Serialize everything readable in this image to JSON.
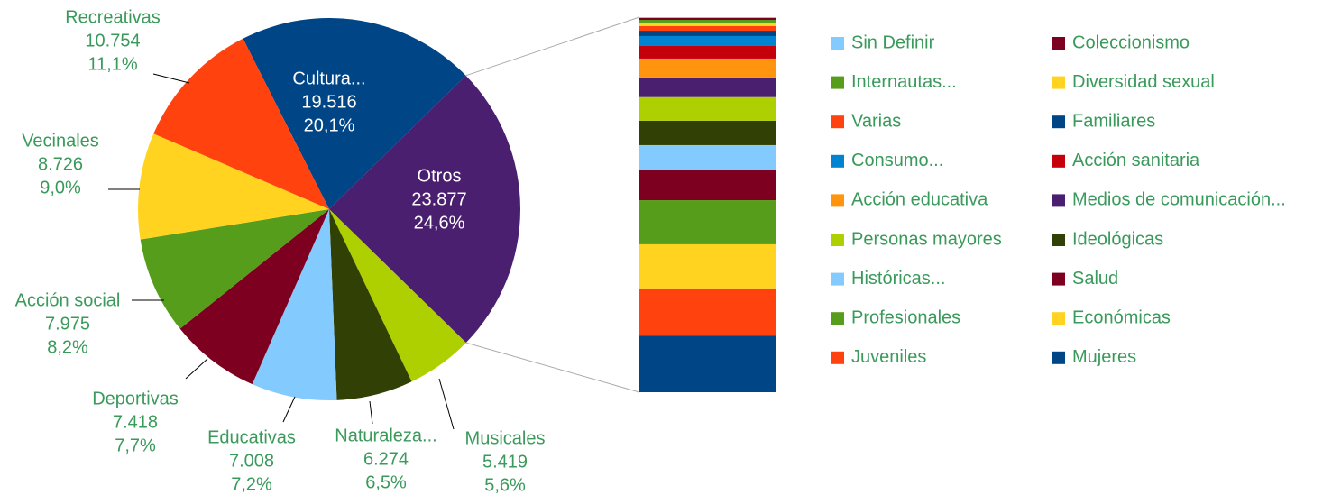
{
  "chart_data": {
    "type": "pie-of-bar",
    "categories": [
      "Cultura...",
      "Otros",
      "Musicales",
      "Naturaleza...",
      "Educativas",
      "Deportivas",
      "Acción social",
      "Vecinales",
      "Recreativas"
    ],
    "values": [
      19516,
      23877,
      5419,
      6274,
      7008,
      7418,
      7975,
      8726,
      10754
    ],
    "value_labels": [
      "19.516",
      "23.877",
      "5.419",
      "6.274",
      "7.008",
      "7.418",
      "7.975",
      "8.726",
      "10.754"
    ],
    "percent_labels": [
      "20,1%",
      "24,6%",
      "5,6%",
      "6,5%",
      "7,2%",
      "7,7%",
      "8,2%",
      "9,0%",
      "11,1%"
    ],
    "colors": [
      "#004586",
      "#4b1f6f",
      "#aecf00",
      "#314004",
      "#83caff",
      "#7e0021",
      "#579d1c",
      "#ffd320",
      "#ff420e"
    ],
    "breakdown": [
      {
        "name": "Sin Definir",
        "color": "#83caff",
        "value": 57
      },
      {
        "name": "Coleccionismo",
        "color": "#7e0021",
        "value": 115
      },
      {
        "name": "Internautas...",
        "color": "#579d1c",
        "value": 170
      },
      {
        "name": "Diversidad sexual",
        "color": "#ffd320",
        "value": 230
      },
      {
        "name": "Varias",
        "color": "#ff420e",
        "value": 290
      },
      {
        "name": "Familiares",
        "color": "#004586",
        "value": 340
      },
      {
        "name": "Consumo...",
        "color": "#0084d1",
        "value": 630
      },
      {
        "name": "Acción sanitaria",
        "color": "#c5000b",
        "value": 800
      },
      {
        "name": "Acción educativa",
        "color": "#ff950e",
        "value": 1200
      },
      {
        "name": "Medios de comunicación...",
        "color": "#4b1f6f",
        "value": 1250
      },
      {
        "name": "Personas mayores",
        "color": "#aecf00",
        "value": 1500
      },
      {
        "name": "Ideológicas",
        "color": "#314004",
        "value": 1550
      },
      {
        "name": "Históricas...",
        "color": "#83caff",
        "value": 1550
      },
      {
        "name": "Salud",
        "color": "#7e0021",
        "value": 1950
      },
      {
        "name": "Profesionales",
        "color": "#579d1c",
        "value": 2800
      },
      {
        "name": "Económicas",
        "color": "#ffd320",
        "value": 2800
      },
      {
        "name": "Juveniles",
        "color": "#ff420e",
        "value": 3000
      },
      {
        "name": "Mujeres",
        "color": "#004586",
        "value": 3600
      }
    ]
  }
}
